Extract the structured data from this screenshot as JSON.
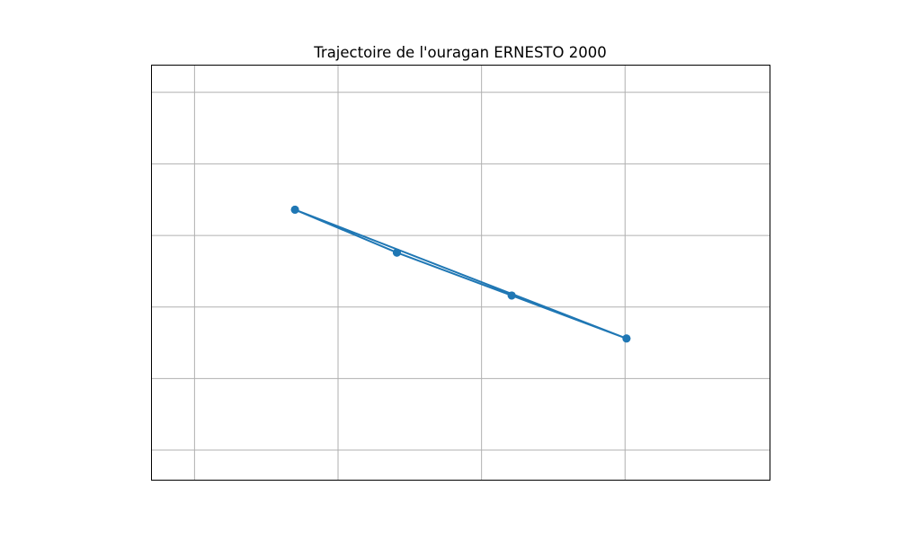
{
  "chart_data": {
    "type": "line",
    "title": "Trajectoire de l'ouragan ERNESTO 2000",
    "xlabel": "",
    "ylabel": "",
    "xlim": [
      -54.3,
      -49.99
    ],
    "ylim": [
      20.39,
      23.29
    ],
    "x_gridlines": [
      -54,
      -53,
      -52,
      -51
    ],
    "y_gridlines": [
      20.6,
      21.1,
      21.6,
      22.1,
      22.6,
      23.1
    ],
    "grid": true,
    "legend": "none",
    "series": [
      {
        "color": "#1f77b4",
        "marker": "circle",
        "x": [
          -53.3,
          -52.59,
          -51.79,
          -50.99,
          -53.3,
          -52.59,
          -51.79,
          -50.99
        ],
        "y": [
          22.28,
          21.98,
          21.68,
          21.38,
          22.28,
          21.98,
          21.68,
          21.38
        ]
      }
    ]
  }
}
